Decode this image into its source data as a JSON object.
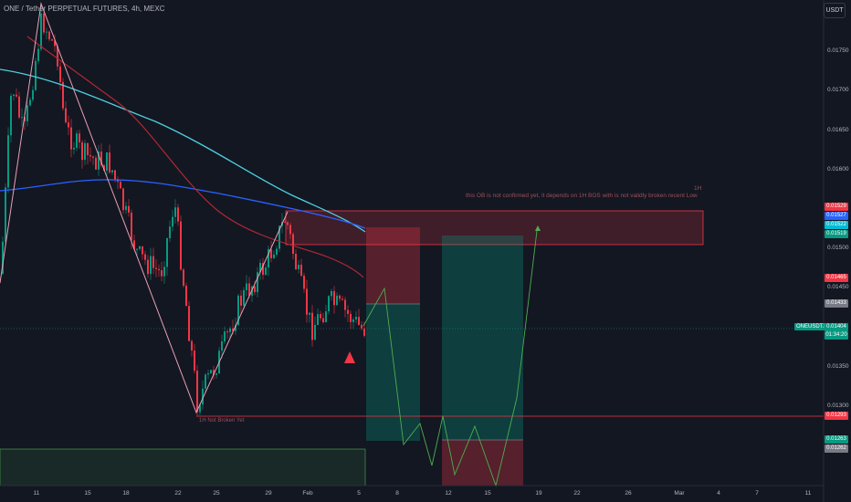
{
  "header": {
    "title": "ONE / Tether PERPETUAL FUTURES, 4h, MEXC",
    "currency_button": "USDT"
  },
  "price_axis": {
    "ticks": [
      "0.01750",
      "0.01700",
      "0.01650",
      "0.01600",
      "0.01500",
      "0.01450",
      "0.01350",
      "0.01300"
    ],
    "tags": [
      {
        "text": "0.01529",
        "color": "#f23645"
      },
      {
        "text": "0.01527",
        "color": "#2962ff"
      },
      {
        "text": "0.01522",
        "color": "#00bcd4"
      },
      {
        "text": "0.01519",
        "color": "#089981"
      },
      {
        "text": "0.01465",
        "color": "#f23645"
      },
      {
        "text": "0.01433",
        "color": "#787b86"
      },
      {
        "text": "0.01293",
        "color": "#f23645"
      },
      {
        "text": "0.01263",
        "color": "#089981"
      },
      {
        "text": "0.01262",
        "color": "#787b86"
      }
    ],
    "current": {
      "symbol": "ONEUSDT.P",
      "price": "0.01404",
      "countdown": "01:34:20"
    }
  },
  "time_axis": {
    "ticks": [
      "11",
      "15",
      "18",
      "22",
      "25",
      "29",
      "Feb",
      "5",
      "8",
      "12",
      "15",
      "19",
      "22",
      "26",
      "Mar",
      "4",
      "7",
      "11"
    ]
  },
  "annotations": {
    "ob_tf": "1H",
    "ob_note": "this OB is not confirmed yet, it  depends on 1H BOS with is not validly broken recent Low",
    "low_note": "1H Not Broken Yet"
  },
  "colors": {
    "background": "#131722",
    "up": "#089981",
    "down": "#f23645",
    "ma_blue": "#2962ff",
    "ma_cyan": "#4dd0e1",
    "ma_red": "#b22833"
  }
}
